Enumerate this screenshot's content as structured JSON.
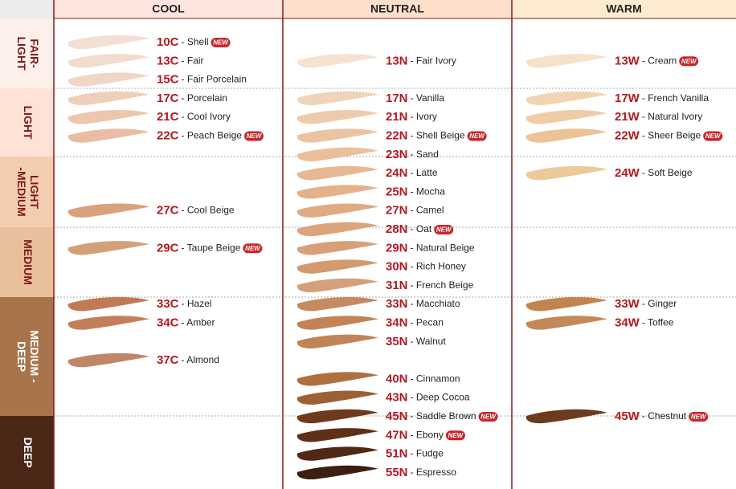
{
  "header": {
    "columns": [
      "COOL",
      "NEUTRAL",
      "WARM"
    ]
  },
  "rows": [
    [
      "FAIR-",
      "LIGHT"
    ],
    [
      "LIGHT"
    ],
    [
      "LIGHT",
      "-MEDIUM"
    ],
    [
      "MEDIUM"
    ],
    [
      "MEDIUM -",
      "DEEP"
    ],
    [
      "DEEP"
    ]
  ],
  "columns": [
    {
      "shades": [
        {
          "code": "10C",
          "name": "Shell",
          "color": "#f3dfd3",
          "badge": "NEW"
        },
        {
          "code": "13C",
          "name": "Fair",
          "color": "#f2dccd"
        },
        {
          "code": "15C",
          "name": "Fair Porcelain",
          "color": "#f0d6c6"
        },
        {
          "code": "17C",
          "name": "Porcelain",
          "color": "#efcfb9"
        },
        {
          "code": "21C",
          "name": "Cool Ivory",
          "color": "#ecc6ad"
        },
        {
          "code": "22C",
          "name": "Peach Beige",
          "color": "#e8bda3",
          "badge": "NEW"
        },
        null,
        null,
        null,
        {
          "code": "27C",
          "name": "Cool Beige",
          "color": "#d9a17c"
        },
        null,
        {
          "code": "29C",
          "name": "Taupe Beige",
          "color": "#d4a07a",
          "badge": "NEW"
        },
        null,
        null,
        {
          "code": "33C",
          "name": "Hazel",
          "color": "#c07a56"
        },
        {
          "code": "34C",
          "name": "Amber",
          "color": "#c47f5a"
        },
        null,
        {
          "code": "37C",
          "name": "Almond",
          "color": "#c0866a"
        },
        null,
        null,
        null,
        null,
        null,
        null
      ]
    },
    {
      "shades": [
        null,
        {
          "code": "13N",
          "name": "Fair Ivory",
          "color": "#f5e3d0"
        },
        null,
        {
          "code": "17N",
          "name": "Vanilla",
          "color": "#f1d3b9"
        },
        {
          "code": "21N",
          "name": "Ivory",
          "color": "#efcbae"
        },
        {
          "code": "22N",
          "name": "Shell Beige",
          "color": "#ecc3a2",
          "badge": "NEW"
        },
        {
          "code": "23N",
          "name": "Sand",
          "color": "#eabf9c"
        },
        {
          "code": "24N",
          "name": "Latte",
          "color": "#e6b893"
        },
        {
          "code": "25N",
          "name": "Mocha",
          "color": "#e3b18b"
        },
        {
          "code": "27N",
          "name": "Camel",
          "color": "#dfab83"
        },
        {
          "code": "28N",
          "name": "Oat",
          "color": "#dba47c",
          "badge": "NEW"
        },
        {
          "code": "29N",
          "name": "Natural Beige",
          "color": "#d8a078"
        },
        {
          "code": "30N",
          "name": "Rich Honey",
          "color": "#d39a6f"
        },
        {
          "code": "31N",
          "name": "French Beige",
          "color": "#d4a07a"
        },
        {
          "code": "33N",
          "name": "Macchiato",
          "color": "#c68a61"
        },
        {
          "code": "34N",
          "name": "Pecan",
          "color": "#c28457"
        },
        {
          "code": "35N",
          "name": "Walnut",
          "color": "#c08458"
        },
        null,
        {
          "code": "40N",
          "name": "Cinnamon",
          "color": "#ae7041"
        },
        {
          "code": "43N",
          "name": "Deep Cocoa",
          "color": "#9c6035"
        },
        {
          "code": "45N",
          "name": "Saddle Brown",
          "color": "#6e3a1c",
          "badge": "NEW"
        },
        {
          "code": "47N",
          "name": "Ebony",
          "color": "#5e301a",
          "badge": "NEW"
        },
        {
          "code": "51N",
          "name": "Fudge",
          "color": "#502816"
        },
        {
          "code": "55N",
          "name": "Espresso",
          "color": "#3e1e10"
        }
      ]
    },
    {
      "shades": [
        null,
        {
          "code": "13W",
          "name": "Cream",
          "color": "#f5e2c9",
          "badge": "NEW"
        },
        null,
        {
          "code": "17W",
          "name": "French Vanilla",
          "color": "#f2d4b3"
        },
        {
          "code": "21W",
          "name": "Natural Ivory",
          "color": "#efcca6"
        },
        {
          "code": "22W",
          "name": "Sheer Beige",
          "color": "#ebc396",
          "badge": "NEW"
        },
        null,
        {
          "code": "24W",
          "name": "Soft Beige",
          "color": "#edc898"
        },
        null,
        null,
        null,
        null,
        null,
        null,
        {
          "code": "33W",
          "name": "Ginger",
          "color": "#c2844f"
        },
        {
          "code": "34W",
          "name": "Toffee",
          "color": "#c4895a"
        },
        null,
        null,
        null,
        null,
        {
          "code": "45W",
          "name": "Chestnut",
          "color": "#6c3a1c",
          "badge": "NEW"
        },
        null,
        null,
        null
      ]
    }
  ]
}
